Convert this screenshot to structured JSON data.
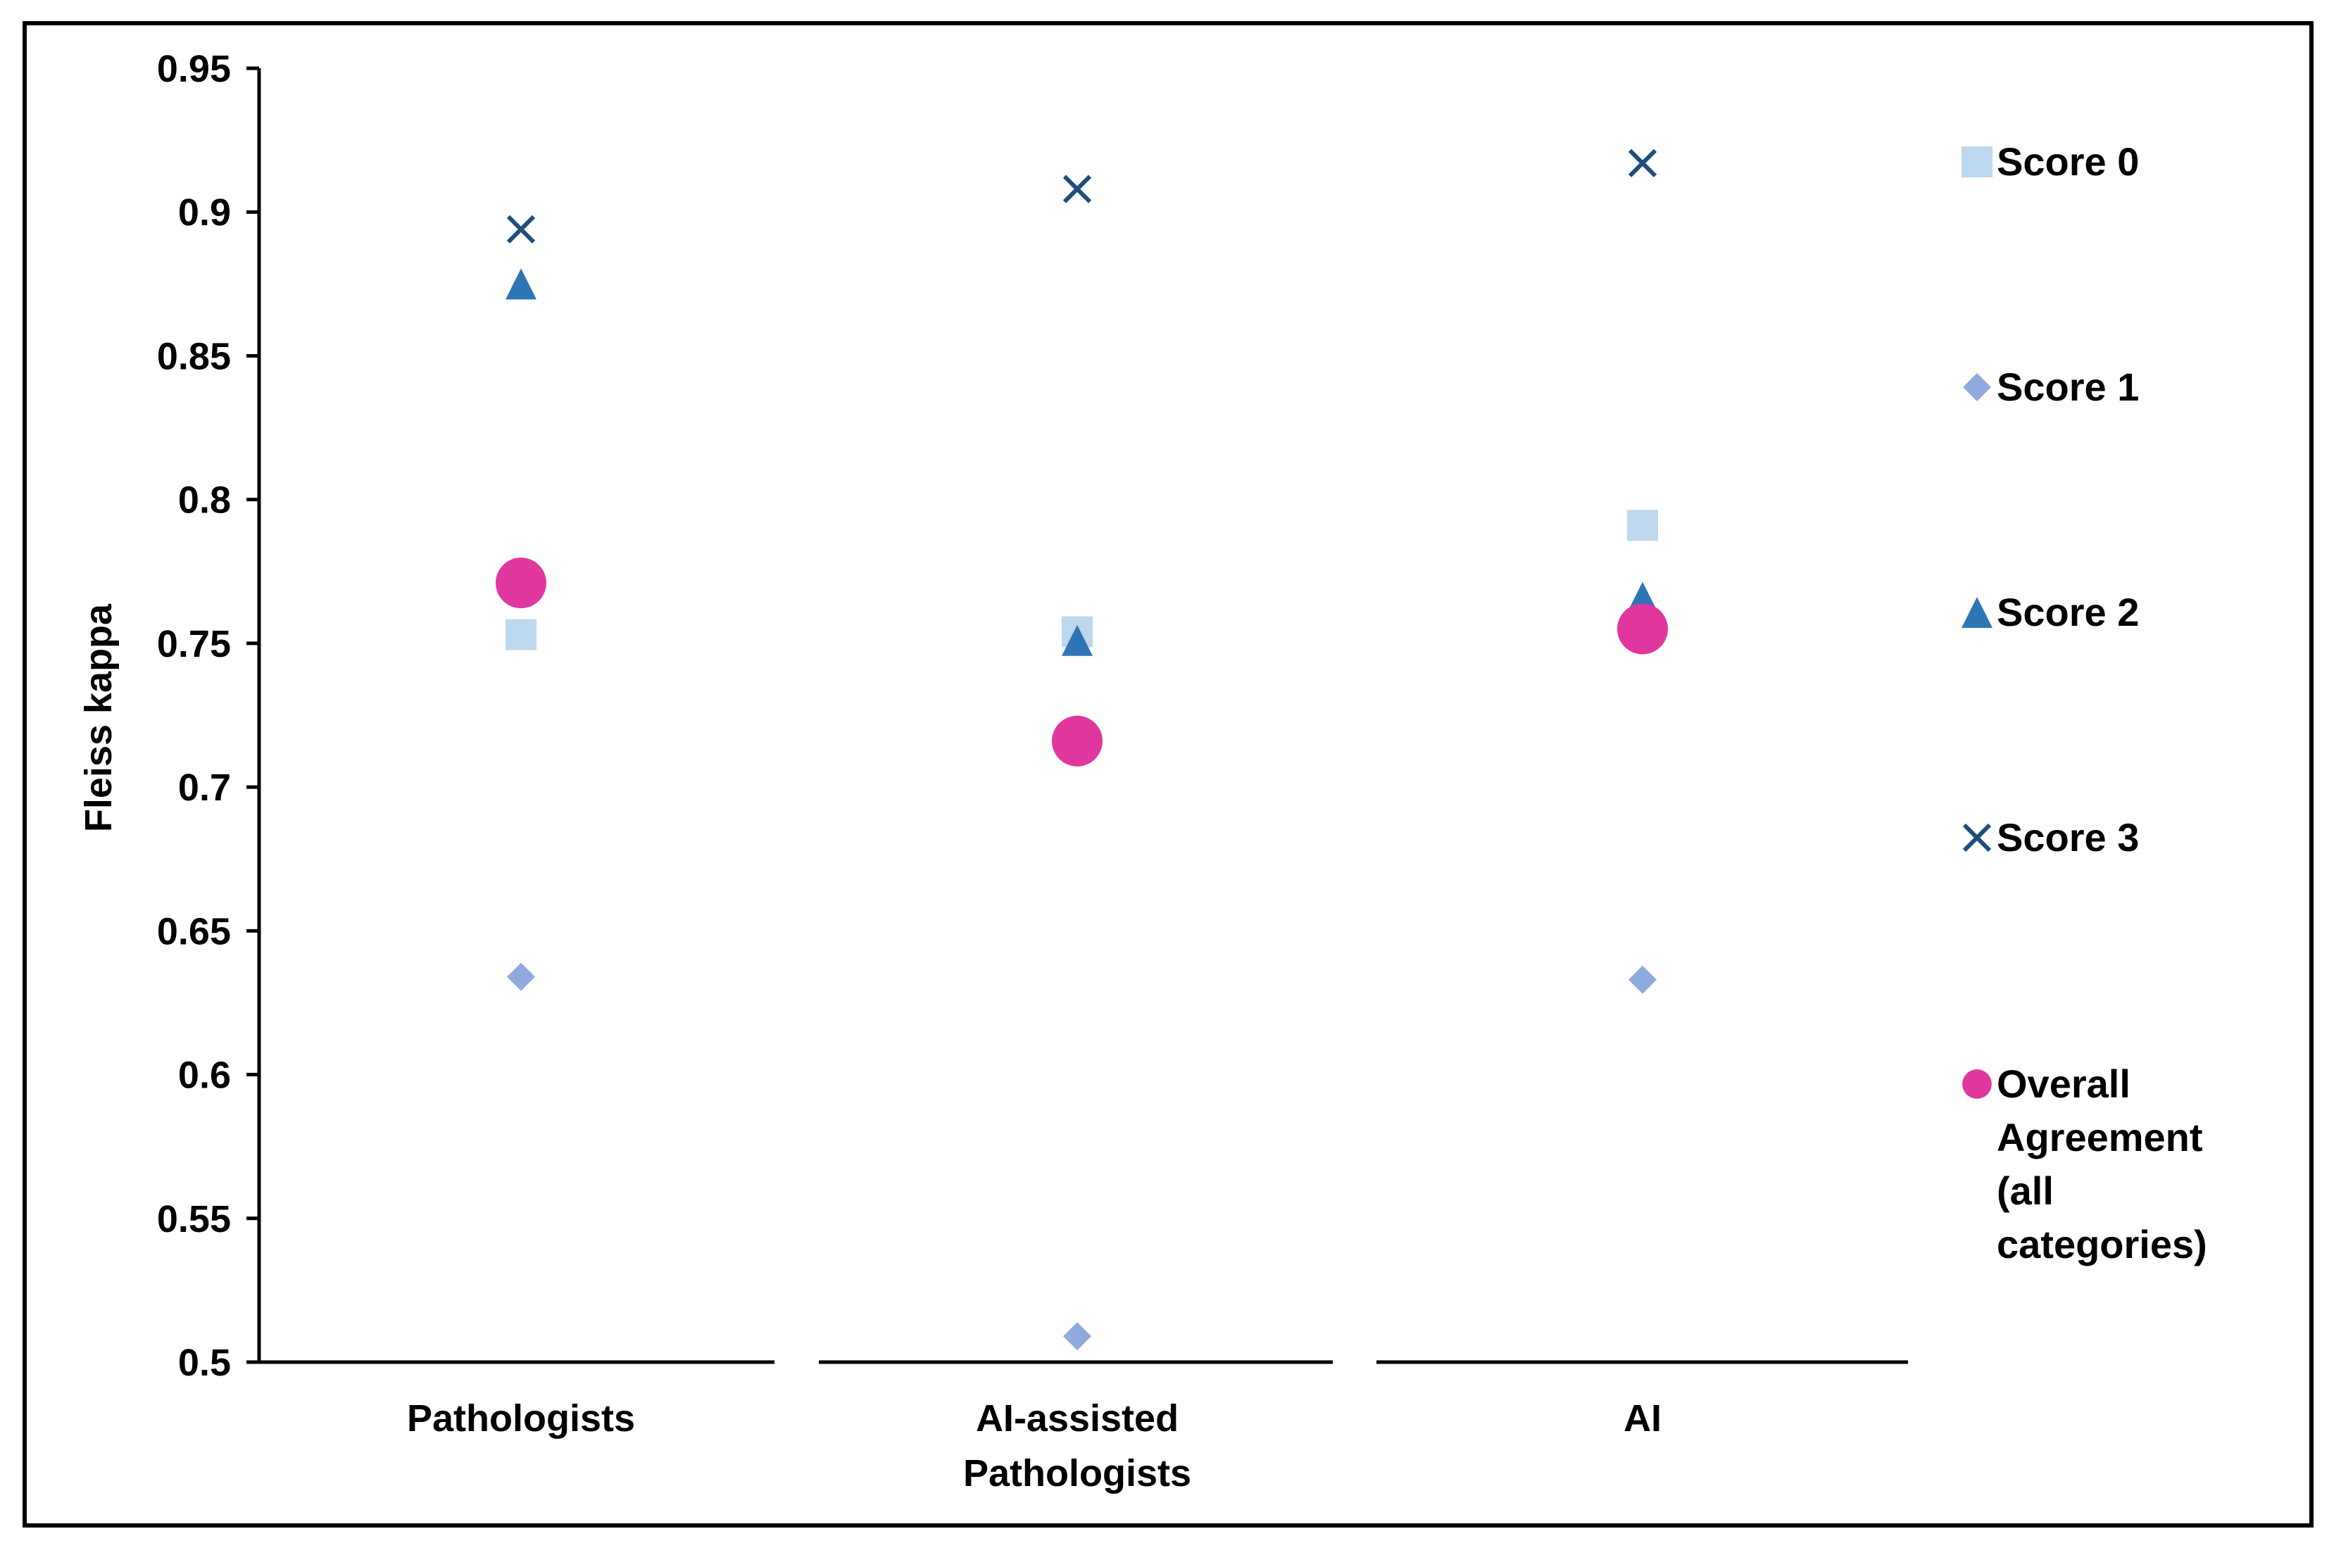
{
  "chart_data": {
    "type": "scatter",
    "ylabel": "Fleiss kappa",
    "xlabel": "",
    "ylim": [
      0.5,
      0.95
    ],
    "yticks": [
      "0.95",
      "0.9",
      "0.85",
      "0.8",
      "0.75",
      "0.7",
      "0.65",
      "0.6",
      "0.55",
      "0.5"
    ],
    "categories": [
      "Pathologists",
      "AI-assisted Pathologists",
      "AI"
    ],
    "category_lines": [
      [
        "Pathologists"
      ],
      [
        "AI-assisted",
        "Pathologists"
      ],
      [
        "AI"
      ]
    ],
    "grid": false,
    "legend_position": "right",
    "series": [
      {
        "name": "Score 0",
        "marker": "square",
        "color": "#bdd7ee",
        "values": [
          0.753,
          0.754,
          0.791
        ]
      },
      {
        "name": "Score 1",
        "marker": "diamond",
        "color": "#8faadc",
        "values": [
          0.634,
          0.509,
          0.633
        ]
      },
      {
        "name": "Score 2",
        "marker": "triangle",
        "color": "#2e75b6",
        "values": [
          0.875,
          0.751,
          0.766
        ]
      },
      {
        "name": "Score 3",
        "marker": "x",
        "color": "#1f4e79",
        "values": [
          0.894,
          0.908,
          0.917
        ]
      },
      {
        "name": "Overall Agreement (all categories)",
        "marker": "circle",
        "color": "#e0379f",
        "values": [
          0.771,
          0.716,
          0.755
        ]
      }
    ],
    "legend_lines": [
      [
        "Score 0"
      ],
      [
        "Score 1"
      ],
      [
        "Score 2"
      ],
      [
        "Score 3"
      ],
      [
        "Overall",
        "Agreement",
        "(all",
        "categories)"
      ]
    ]
  }
}
